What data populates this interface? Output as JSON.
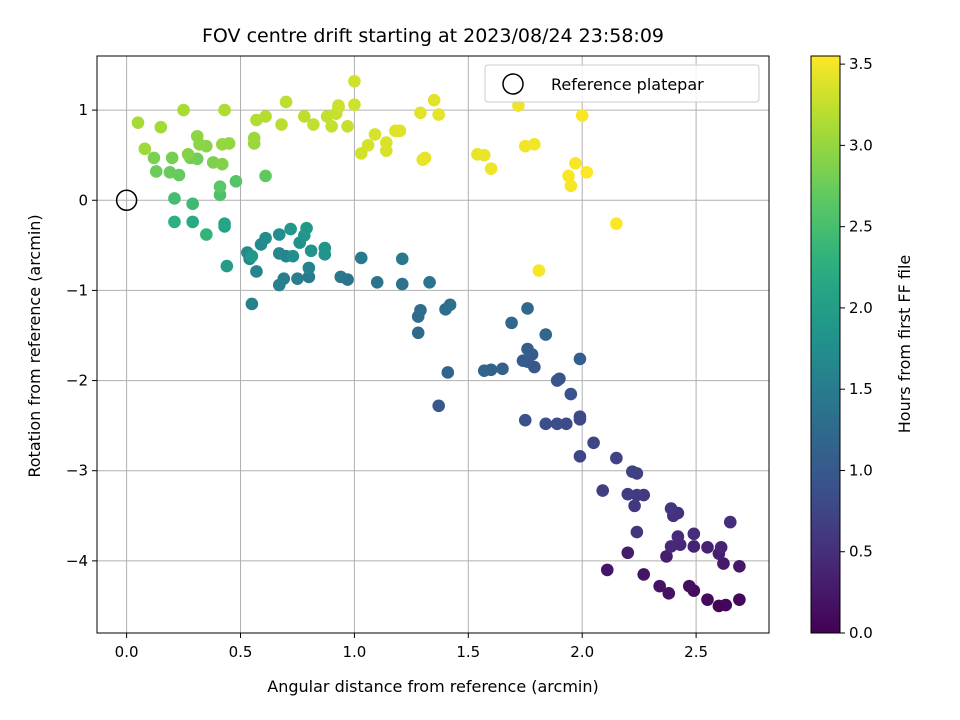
{
  "chart_data": {
    "type": "scatter",
    "title": "FOV centre drift starting at 2023/08/24 23:58:09",
    "xlabel": "Angular distance from reference (arcmin)",
    "ylabel": "Rotation from reference (arcmin)",
    "xlim": [
      -0.13,
      2.82
    ],
    "ylim": [
      -4.8,
      1.6
    ],
    "xticks": [
      0.0,
      0.5,
      1.0,
      1.5,
      2.0,
      2.5
    ],
    "xtick_labels": [
      "0.0",
      "0.5",
      "1.0",
      "1.5",
      "2.0",
      "2.5"
    ],
    "yticks": [
      -4,
      -3,
      -2,
      -1,
      0,
      1
    ],
    "ytick_labels": [
      "−4",
      "−3",
      "−2",
      "−1",
      "0",
      "1"
    ],
    "grid": true,
    "colormap": "viridis",
    "colorbar": {
      "label": "Hours from first FF file",
      "range": [
        0.0,
        3.55
      ],
      "ticks": [
        0.0,
        0.5,
        1.0,
        1.5,
        2.0,
        2.5,
        3.0,
        3.5
      ],
      "tick_labels": [
        "0.0",
        "0.5",
        "1.0",
        "1.5",
        "2.0",
        "2.5",
        "3.0",
        "3.5"
      ]
    },
    "legend": {
      "placement": "upper right",
      "entries": [
        {
          "label": "Reference platepar",
          "marker": "open-circle"
        }
      ]
    },
    "reference": {
      "x": 0.0,
      "y": 0.0
    },
    "points": [
      [
        2.6,
        -4.5,
        0.03
      ],
      [
        2.63,
        -4.49,
        0.05
      ],
      [
        2.69,
        -4.43,
        0.08
      ],
      [
        2.55,
        -4.43,
        0.1
      ],
      [
        2.49,
        -4.33,
        0.12
      ],
      [
        2.47,
        -4.28,
        0.14
      ],
      [
        2.38,
        -4.36,
        0.17
      ],
      [
        2.34,
        -4.28,
        0.19
      ],
      [
        2.27,
        -4.15,
        0.21
      ],
      [
        2.11,
        -4.1,
        0.23
      ],
      [
        2.69,
        -4.06,
        0.25
      ],
      [
        2.62,
        -4.03,
        0.27
      ],
      [
        2.2,
        -3.91,
        0.29
      ],
      [
        2.37,
        -3.95,
        0.31
      ],
      [
        2.6,
        -3.92,
        0.33
      ],
      [
        2.55,
        -3.85,
        0.35
      ],
      [
        2.49,
        -3.84,
        0.37
      ],
      [
        2.61,
        -3.85,
        0.39
      ],
      [
        2.43,
        -3.82,
        0.41
      ],
      [
        2.39,
        -3.84,
        0.43
      ],
      [
        2.42,
        -3.73,
        0.45
      ],
      [
        2.49,
        -3.7,
        0.47
      ],
      [
        2.65,
        -3.57,
        0.49
      ],
      [
        2.4,
        -3.5,
        0.51
      ],
      [
        2.42,
        -3.47,
        0.53
      ],
      [
        2.39,
        -3.42,
        0.55
      ],
      [
        2.24,
        -3.68,
        0.57
      ],
      [
        2.23,
        -3.39,
        0.59
      ],
      [
        2.27,
        -3.27,
        0.61
      ],
      [
        2.24,
        -3.27,
        0.63
      ],
      [
        2.2,
        -3.26,
        0.65
      ],
      [
        2.09,
        -3.22,
        0.67
      ],
      [
        2.24,
        -3.03,
        0.69
      ],
      [
        2.22,
        -3.01,
        0.71
      ],
      [
        2.15,
        -2.86,
        0.73
      ],
      [
        1.99,
        -2.84,
        0.75
      ],
      [
        2.05,
        -2.69,
        0.77
      ],
      [
        1.99,
        -2.43,
        0.79
      ],
      [
        1.99,
        -2.4,
        0.81
      ],
      [
        1.93,
        -2.48,
        0.83
      ],
      [
        1.89,
        -2.48,
        0.85
      ],
      [
        1.84,
        -2.48,
        0.87
      ],
      [
        1.75,
        -2.44,
        0.89
      ],
      [
        1.95,
        -2.15,
        0.91
      ],
      [
        1.9,
        -1.98,
        0.93
      ],
      [
        1.89,
        -2.0,
        0.95
      ],
      [
        1.37,
        -2.28,
        0.97
      ],
      [
        1.79,
        -1.85,
        0.99
      ],
      [
        1.76,
        -1.79,
        1.01
      ],
      [
        1.74,
        -1.78,
        1.03
      ],
      [
        1.78,
        -1.71,
        1.05
      ],
      [
        1.76,
        -1.65,
        1.07
      ],
      [
        1.99,
        -1.76,
        1.09
      ],
      [
        1.65,
        -1.87,
        1.11
      ],
      [
        1.6,
        -1.88,
        1.13
      ],
      [
        1.57,
        -1.89,
        1.15
      ],
      [
        1.41,
        -1.91,
        1.17
      ],
      [
        1.84,
        -1.49,
        1.19
      ],
      [
        1.69,
        -1.36,
        1.21
      ],
      [
        1.76,
        -1.2,
        1.23
      ],
      [
        1.28,
        -1.47,
        1.25
      ],
      [
        1.28,
        -1.29,
        1.27
      ],
      [
        1.29,
        -1.22,
        1.29
      ],
      [
        1.4,
        -1.21,
        1.31
      ],
      [
        1.42,
        -1.16,
        1.33
      ],
      [
        1.21,
        -0.93,
        1.35
      ],
      [
        1.33,
        -0.91,
        1.37
      ],
      [
        1.1,
        -0.91,
        1.39
      ],
      [
        0.97,
        -0.88,
        1.41
      ],
      [
        0.94,
        -0.85,
        1.43
      ],
      [
        1.21,
        -0.65,
        1.45
      ],
      [
        1.03,
        -0.64,
        1.47
      ],
      [
        0.8,
        -0.85,
        1.49
      ],
      [
        0.75,
        -0.87,
        1.51
      ],
      [
        0.69,
        -0.87,
        1.53
      ],
      [
        0.67,
        -0.94,
        1.55
      ],
      [
        0.55,
        -1.15,
        1.57
      ],
      [
        0.8,
        -0.75,
        1.59
      ],
      [
        0.57,
        -0.79,
        1.61
      ],
      [
        0.7,
        -0.62,
        1.63
      ],
      [
        0.67,
        -0.59,
        1.65
      ],
      [
        0.54,
        -0.65,
        1.67
      ],
      [
        0.53,
        -0.58,
        1.69
      ],
      [
        0.59,
        -0.49,
        1.71
      ],
      [
        0.61,
        -0.42,
        1.73
      ],
      [
        0.67,
        -0.38,
        1.75
      ],
      [
        0.73,
        -0.62,
        1.77
      ],
      [
        0.76,
        -0.47,
        1.79
      ],
      [
        0.81,
        -0.56,
        1.81
      ],
      [
        0.87,
        -0.6,
        1.83
      ],
      [
        0.87,
        -0.53,
        1.85
      ],
      [
        0.78,
        -0.39,
        1.87
      ],
      [
        0.72,
        -0.32,
        1.89
      ],
      [
        0.79,
        -0.31,
        1.91
      ],
      [
        0.55,
        -0.62,
        1.93
      ],
      [
        0.44,
        -0.73,
        1.97
      ],
      [
        0.43,
        -0.29,
        2.05
      ],
      [
        0.43,
        -0.26,
        2.12
      ],
      [
        0.29,
        -0.24,
        2.2
      ],
      [
        0.21,
        -0.24,
        2.28
      ],
      [
        0.35,
        -0.38,
        2.35
      ],
      [
        0.29,
        -0.04,
        2.42
      ],
      [
        0.21,
        0.02,
        2.48
      ],
      [
        0.41,
        0.06,
        2.55
      ],
      [
        0.48,
        0.21,
        2.6
      ],
      [
        0.41,
        0.15,
        2.64
      ],
      [
        0.61,
        0.27,
        2.68
      ],
      [
        0.23,
        0.28,
        2.72
      ],
      [
        0.19,
        0.31,
        2.74
      ],
      [
        0.13,
        0.32,
        2.76
      ],
      [
        0.31,
        0.46,
        2.78
      ],
      [
        0.28,
        0.47,
        2.8
      ],
      [
        0.2,
        0.47,
        2.82
      ],
      [
        0.12,
        0.47,
        2.84
      ],
      [
        0.38,
        0.42,
        2.86
      ],
      [
        0.42,
        0.4,
        2.88
      ],
      [
        0.27,
        0.51,
        2.9
      ],
      [
        0.35,
        0.6,
        2.92
      ],
      [
        0.32,
        0.62,
        2.94
      ],
      [
        0.31,
        0.71,
        2.96
      ],
      [
        0.45,
        0.63,
        2.98
      ],
      [
        0.42,
        0.62,
        3.0
      ],
      [
        0.56,
        0.63,
        3.02
      ],
      [
        0.56,
        0.69,
        3.04
      ],
      [
        0.08,
        0.57,
        3.06
      ],
      [
        0.15,
        0.81,
        3.08
      ],
      [
        0.05,
        0.86,
        3.1
      ],
      [
        0.25,
        1.0,
        3.12
      ],
      [
        0.43,
        1.0,
        3.14
      ],
      [
        0.57,
        0.89,
        3.16
      ],
      [
        0.61,
        0.93,
        3.18
      ],
      [
        0.68,
        0.84,
        3.2
      ],
      [
        0.7,
        1.09,
        3.21
      ],
      [
        0.78,
        0.93,
        3.22
      ],
      [
        0.82,
        0.84,
        3.24
      ],
      [
        0.88,
        0.93,
        3.25
      ],
      [
        0.9,
        0.82,
        3.26
      ],
      [
        0.92,
        0.96,
        3.27
      ],
      [
        0.97,
        0.82,
        3.28
      ],
      [
        0.93,
        1.03,
        3.29
      ],
      [
        0.93,
        1.05,
        3.3
      ],
      [
        1.0,
        1.06,
        3.31
      ],
      [
        1.0,
        1.32,
        3.32
      ],
      [
        1.03,
        0.52,
        3.33
      ],
      [
        1.06,
        0.61,
        3.34
      ],
      [
        1.09,
        0.73,
        3.35
      ],
      [
        1.14,
        0.55,
        3.36
      ],
      [
        1.14,
        0.64,
        3.37
      ],
      [
        1.18,
        0.77,
        3.38
      ],
      [
        1.2,
        0.77,
        3.39
      ],
      [
        1.29,
        0.97,
        3.4
      ],
      [
        1.35,
        1.11,
        3.41
      ],
      [
        1.37,
        0.95,
        3.42
      ],
      [
        1.31,
        0.47,
        3.43
      ],
      [
        1.3,
        0.45,
        3.44
      ],
      [
        1.54,
        0.51,
        3.45
      ],
      [
        1.57,
        0.5,
        3.46
      ],
      [
        1.6,
        0.35,
        3.47
      ],
      [
        1.72,
        1.05,
        3.48
      ],
      [
        1.75,
        0.6,
        3.49
      ],
      [
        1.79,
        0.62,
        3.5
      ],
      [
        1.81,
        -0.78,
        3.51
      ],
      [
        1.94,
        0.27,
        3.52
      ],
      [
        1.95,
        0.16,
        3.52
      ],
      [
        1.97,
        0.41,
        3.53
      ],
      [
        2.0,
        0.94,
        3.53
      ],
      [
        2.02,
        0.31,
        3.54
      ],
      [
        2.15,
        -0.26,
        3.54
      ]
    ]
  }
}
